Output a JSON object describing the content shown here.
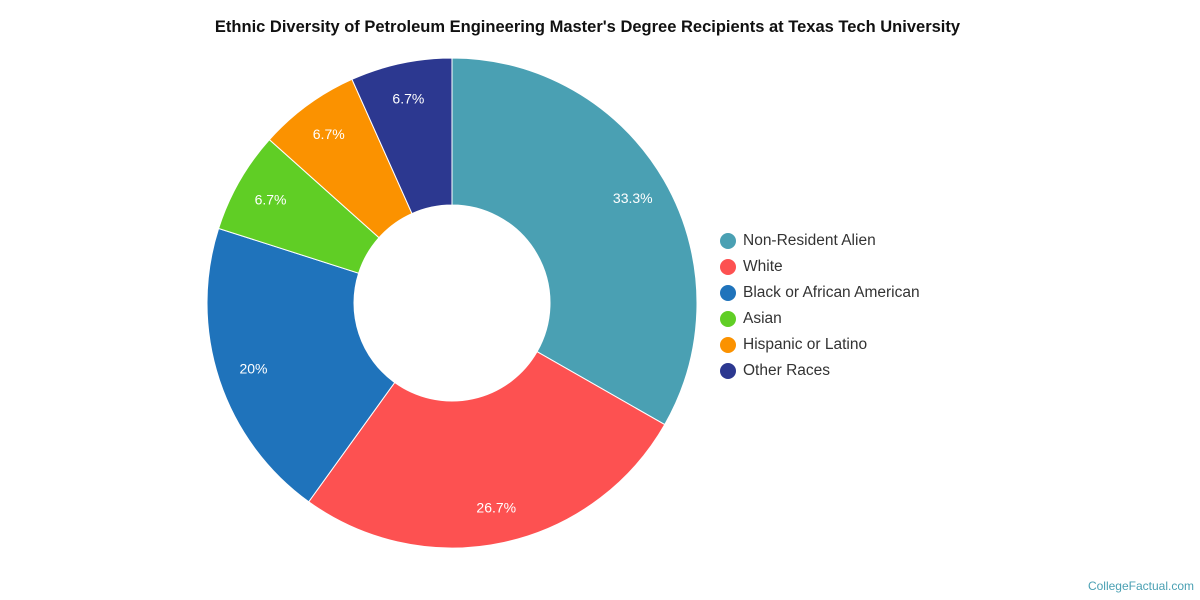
{
  "chart_data": {
    "type": "pie",
    "subtype": "donut",
    "title": "Ethnic Diversity of Petroleum Engineering Master's Degree Recipients at Texas Tech University",
    "categories": [
      "Non-Resident Alien",
      "White",
      "Black or African American",
      "Asian",
      "Hispanic or Latino",
      "Other Races"
    ],
    "values": [
      33.3,
      26.7,
      20,
      6.7,
      6.7,
      6.7
    ],
    "labels": [
      "33.3%",
      "26.7%",
      "20%",
      "6.7%",
      "6.7%",
      "6.7%"
    ],
    "colors": [
      "#4aa0b3",
      "#fd5151",
      "#1f73bb",
      "#60ce25",
      "#fb9200",
      "#2c3890"
    ],
    "legend": "right"
  },
  "watermark": "CollegeFactual.com"
}
